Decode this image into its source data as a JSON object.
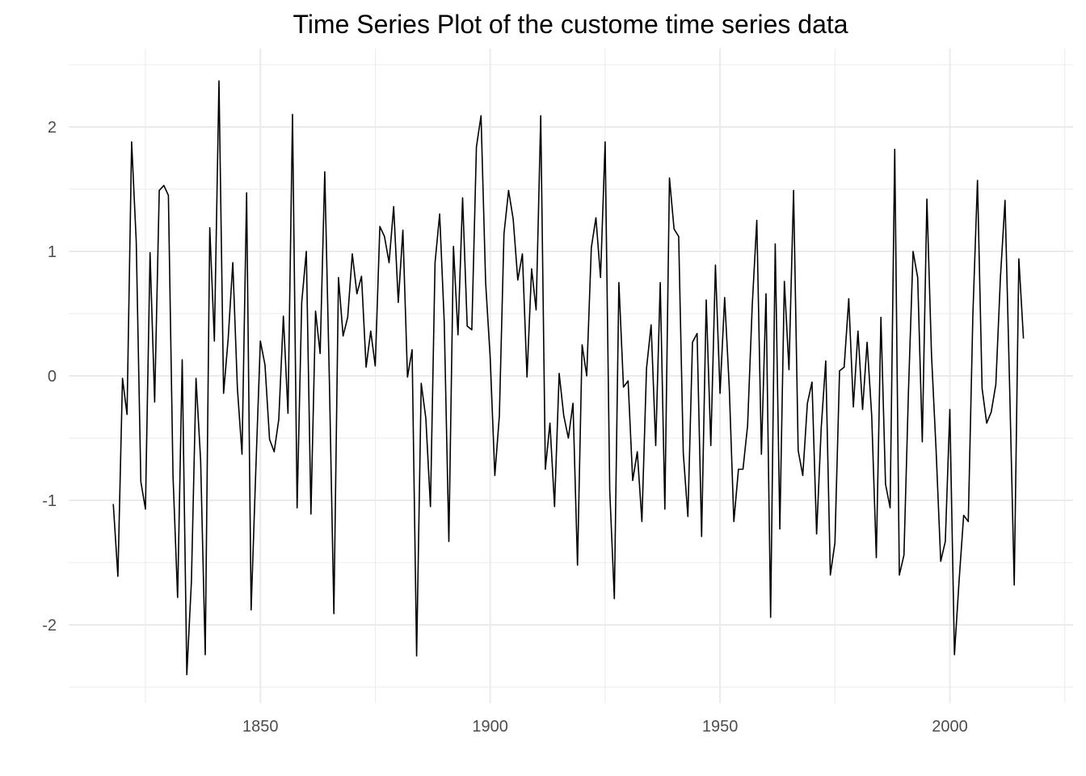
{
  "chart_data": {
    "type": "line",
    "title": "Time Series Plot of the custome time series data",
    "xlabel": "",
    "ylabel": "",
    "x_start": 1818,
    "x_step": 1,
    "xlim": [
      1808.3,
      2026.8
    ],
    "ylim": [
      -2.63,
      2.63
    ],
    "x_major_ticks": [
      1850,
      1900,
      1950,
      2000
    ],
    "x_tick_labels": [
      "1850",
      "1900",
      "1950",
      "2000"
    ],
    "x_minor_ticks": [
      1825,
      1875,
      1925,
      1975,
      2025
    ],
    "y_major_ticks": [
      -2,
      -1,
      0,
      1,
      2
    ],
    "y_tick_labels": [
      "-2",
      "-1",
      "0",
      "1",
      "2"
    ],
    "y_minor_ticks": [
      -2.5,
      -1.5,
      -0.5,
      0.5,
      1.5,
      2.5
    ],
    "grid": true,
    "line_color": "#000000",
    "grid_color": "#ebebeb",
    "values": [
      -1.03,
      -1.61,
      -0.02,
      -0.31,
      1.88,
      1.08,
      -0.85,
      -1.07,
      0.99,
      -0.21,
      1.49,
      1.53,
      1.45,
      -0.8,
      -1.78,
      0.13,
      -2.4,
      -1.65,
      -0.02,
      -0.68,
      -2.24,
      1.19,
      0.28,
      2.37,
      -0.14,
      0.3,
      0.91,
      -0.1,
      -0.63,
      1.47,
      -1.88,
      -0.77,
      0.28,
      0.09,
      -0.51,
      -0.61,
      -0.35,
      0.48,
      -0.3,
      2.1,
      -1.06,
      0.59,
      1.0,
      -1.11,
      0.52,
      0.18,
      1.64,
      -0.03,
      -1.91,
      0.79,
      0.32,
      0.47,
      0.98,
      0.66,
      0.8,
      0.07,
      0.36,
      0.08,
      1.2,
      1.12,
      0.91,
      1.36,
      0.59,
      1.17,
      -0.01,
      0.21,
      -2.25,
      -0.06,
      -0.34,
      -1.05,
      0.91,
      1.3,
      0.43,
      -1.33,
      1.04,
      0.33,
      1.43,
      0.4,
      0.37,
      1.84,
      2.09,
      0.75,
      0.14,
      -0.8,
      -0.32,
      1.14,
      1.49,
      1.26,
      0.77,
      0.98,
      -0.01,
      0.86,
      0.53,
      2.09,
      -0.75,
      -0.38,
      -1.05,
      0.02,
      -0.32,
      -0.5,
      -0.22,
      -1.52,
      0.25,
      0.0,
      1.03,
      1.27,
      0.79,
      1.88,
      -0.92,
      -1.79,
      0.75,
      -0.09,
      -0.04,
      -0.84,
      -0.61,
      -1.17,
      0.06,
      0.41,
      -0.56,
      0.75,
      -1.07,
      1.59,
      1.18,
      1.12,
      -0.62,
      -1.13,
      0.27,
      0.34,
      -1.29,
      0.61,
      -0.56,
      0.89,
      -0.14,
      0.63,
      -0.09,
      -1.17,
      -0.75,
      -0.75,
      -0.4,
      0.56,
      1.25,
      -0.63,
      0.66,
      -1.94,
      1.06,
      -1.23,
      0.76,
      0.05,
      1.49,
      -0.6,
      -0.8,
      -0.22,
      -0.05,
      -1.27,
      -0.42,
      0.12,
      -1.6,
      -1.34,
      0.04,
      0.07,
      0.62,
      -0.25,
      0.36,
      -0.27,
      0.27,
      -0.32,
      -1.46,
      0.47,
      -0.87,
      -1.06,
      1.82,
      -1.6,
      -1.44,
      -0.12,
      1.0,
      0.79,
      -0.53,
      1.42,
      0.17,
      -0.6,
      -1.49,
      -1.33,
      -0.27,
      -2.24,
      -1.65,
      -1.12,
      -1.17,
      0.49,
      1.57,
      -0.1,
      -0.38,
      -0.29,
      -0.07,
      0.79,
      1.41,
      -0.09,
      -1.68,
      0.94,
      0.3
    ]
  }
}
